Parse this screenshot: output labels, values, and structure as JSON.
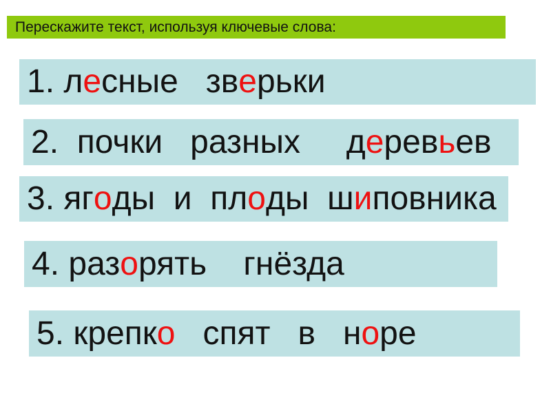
{
  "header": {
    "instruction": "Перескажите текст, используя ключевые слова:"
  },
  "colors": {
    "banner_green": "#8fc90e",
    "box_blue": "#bee1e3",
    "accent_red": "#ee1111",
    "text_black": "#121212"
  },
  "items": [
    {
      "id": "lesnye-zverki",
      "plain_text": "1. лесные   зверьки",
      "segments": [
        {
          "t": "1. л",
          "c": "black"
        },
        {
          "t": "е",
          "c": "red"
        },
        {
          "t": "сные   зв",
          "c": "black"
        },
        {
          "t": "е",
          "c": "red"
        },
        {
          "t": "рьки",
          "c": "black"
        }
      ]
    },
    {
      "id": "pochki-raznyh-derevev",
      "plain_text": "2.  почки   разных     деревьев",
      "segments": [
        {
          "t": "2.  почки   разных     д",
          "c": "black"
        },
        {
          "t": "е",
          "c": "red"
        },
        {
          "t": "рев",
          "c": "black"
        },
        {
          "t": "ь",
          "c": "red"
        },
        {
          "t": "ев",
          "c": "black"
        }
      ]
    },
    {
      "id": "yagody-i-plody-shipovnika",
      "plain_text": "3. ягоды  и  плоды  шиповника",
      "segments": [
        {
          "t": "3. яг",
          "c": "black"
        },
        {
          "t": "о",
          "c": "red"
        },
        {
          "t": "ды  и  пл",
          "c": "black"
        },
        {
          "t": "о",
          "c": "red"
        },
        {
          "t": "ды  ш",
          "c": "black"
        },
        {
          "t": "и",
          "c": "red"
        },
        {
          "t": "повника",
          "c": "black"
        }
      ]
    },
    {
      "id": "razoryat-gnezda",
      "plain_text": "4. разорять    гнёзда",
      "segments": [
        {
          "t": "4. раз",
          "c": "black"
        },
        {
          "t": "о",
          "c": "red"
        },
        {
          "t": "рять    гнёзда",
          "c": "black"
        }
      ]
    },
    {
      "id": "krepko-spyat-v-nore",
      "plain_text": "5. крепко   спят   в   норе",
      "segments": [
        {
          "t": "5. крепк",
          "c": "black"
        },
        {
          "t": "о",
          "c": "red"
        },
        {
          "t": "   спят   в   н",
          "c": "black"
        },
        {
          "t": "о",
          "c": "red"
        },
        {
          "t": "ре",
          "c": "black"
        }
      ]
    }
  ]
}
